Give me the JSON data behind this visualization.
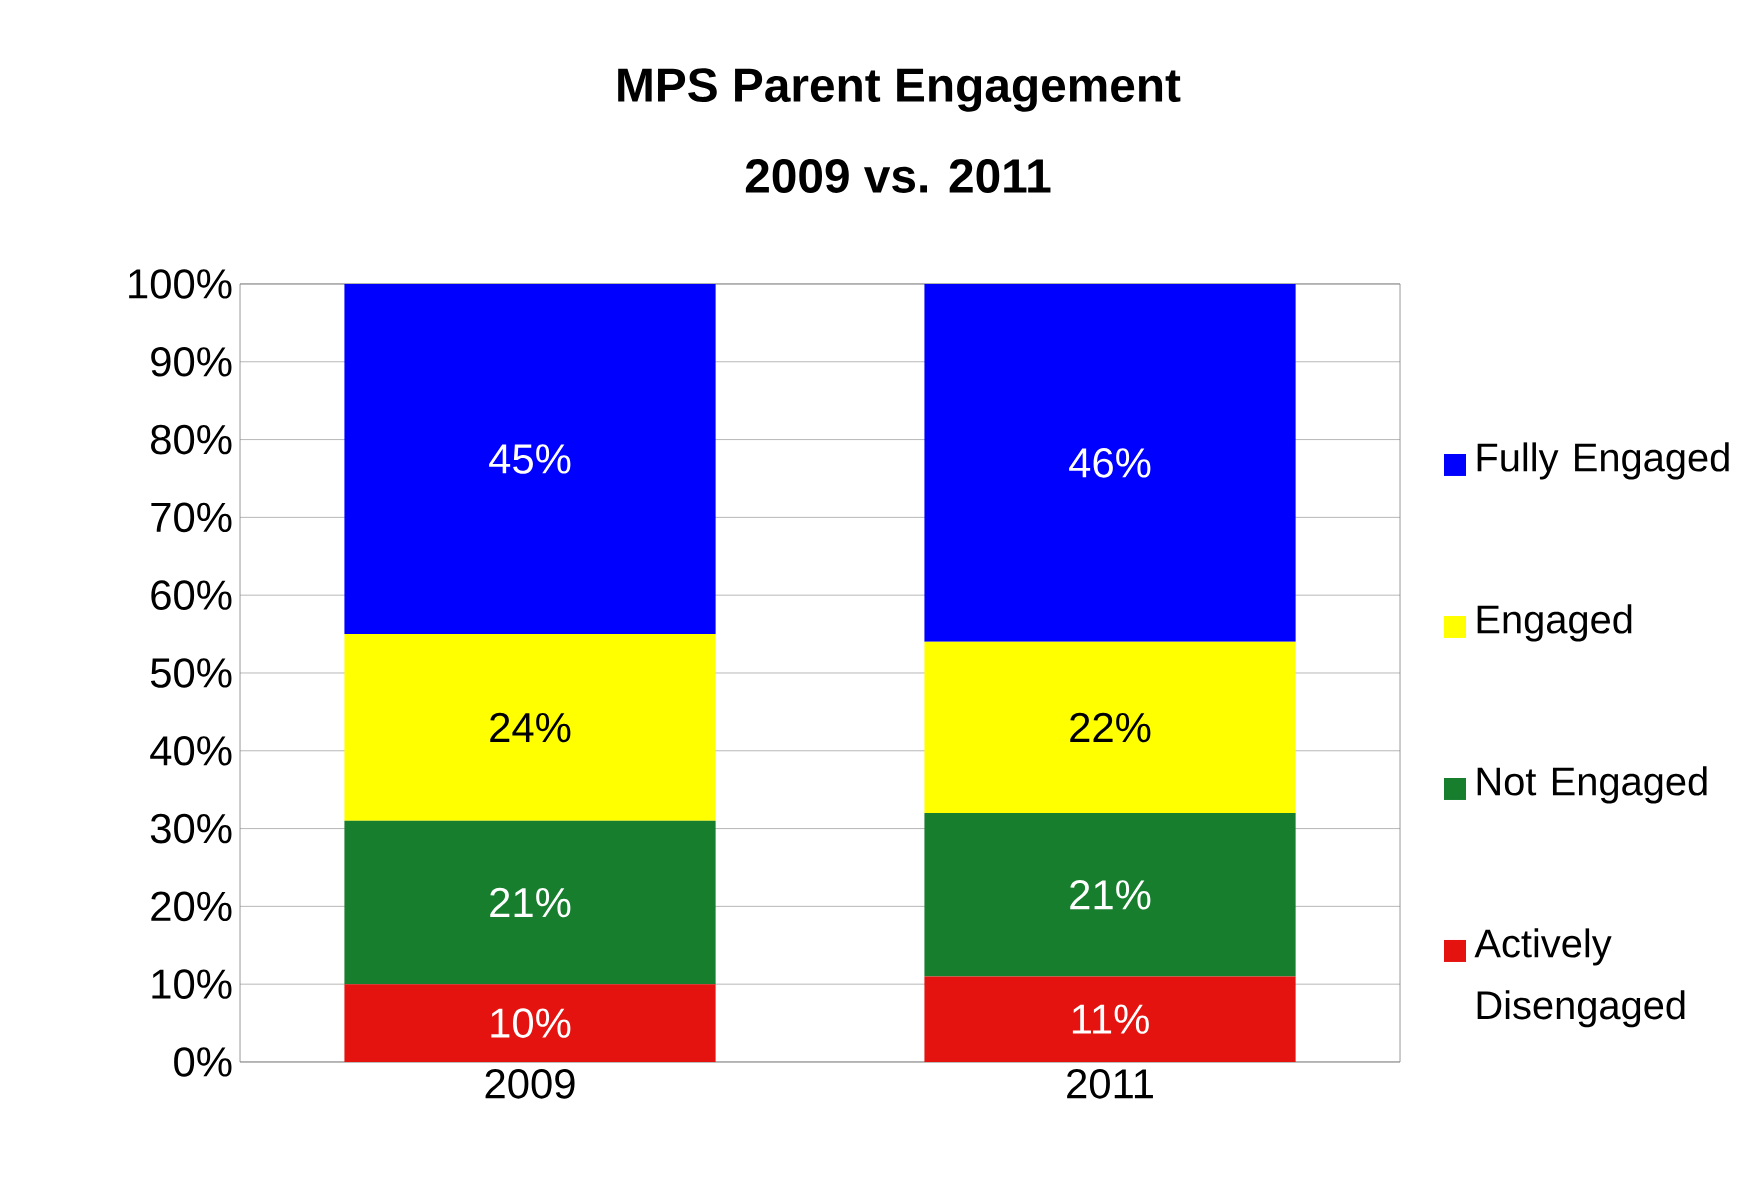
{
  "chart_data": {
    "type": "bar",
    "stacked": true,
    "title": "**MPS Parent Engagement**",
    "subtitle": "**2009 vs. 2011**",
    "categories": [
      "2009",
      "2011"
    ],
    "series": [
      {
        "name": "Actively Disengaged",
        "color": "#e5130f",
        "values": [
          10,
          11
        ],
        "value_labels": [
          "10%",
          "11%"
        ]
      },
      {
        "name": "Not Engaged",
        "color": "#167e2d",
        "values": [
          21,
          21
        ],
        "value_labels": [
          "21%",
          "21%"
        ]
      },
      {
        "name": "Engaged",
        "color": "#ffff00",
        "values": [
          24,
          22
        ],
        "value_labels": [
          "24%",
          "22%"
        ]
      },
      {
        "name": "Fully Engaged",
        "color": "#0000ff",
        "values": [
          45,
          46
        ],
        "value_labels": [
          "45%",
          "46%"
        ]
      }
    ],
    "ylim": [
      0,
      100
    ],
    "yticks": [
      {
        "value": 0,
        "label": "0%"
      },
      {
        "value": 10,
        "label": "10%"
      },
      {
        "value": 20,
        "label": "20%"
      },
      {
        "value": 30,
        "label": "30%"
      },
      {
        "value": 40,
        "label": "40%"
      },
      {
        "value": 50,
        "label": "50%"
      },
      {
        "value": 60,
        "label": "60%"
      },
      {
        "value": 70,
        "label": "70%"
      },
      {
        "value": 80,
        "label": "80%"
      },
      {
        "value": 90,
        "label": "90%"
      },
      {
        "value": 100,
        "label": "100%"
      }
    ],
    "grid": "y",
    "legend": "right"
  }
}
